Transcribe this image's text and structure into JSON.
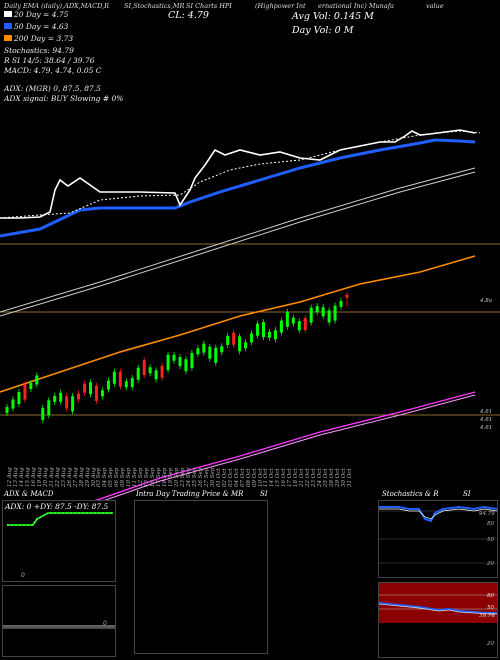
{
  "header": {
    "left_line": "Daily EMA (daily),ADX,MACD,R",
    "mid_line": "SI,Stochastics,MR",
    "mid2_line": "SI Charts HPI",
    "right_line_a": "(Highpower Int",
    "right_line_b": "ernational Inc) Munafa",
    "right_line_c": "value",
    "cl": "CL: 4.79",
    "avg_vol": "Avg Vol: 0.145 M",
    "day_vol": "Day Vol: 0   M"
  },
  "legend": {
    "ema20": "20 Day = 4.75",
    "ema50": "50 Day = 4.63",
    "ema200": "200 Day = 3.73",
    "stoch": "Stochastics: 94.79",
    "rsi": "R                SI 14/5: 38.64 / 39.76",
    "macd": "MACD: 4.79, 4.74, 0.05 C",
    "adx": "ADX:                              (MGR) 0, 87.5, 87.5",
    "adx_signal": "ADX  signal:                                    BUY Slowing # 0%"
  },
  "price_labels": {
    "p1": "4.8a",
    "p2": "4.61",
    "p3": "4.61",
    "p4": "4.61"
  },
  "dates": [
    "12 Aug",
    "13 Aug",
    "14 Aug",
    "15 Aug",
    "16 Aug",
    "19 Aug",
    "20 Aug",
    "21 Aug",
    "22 Aug",
    "23 Aug",
    "26 Aug",
    "27 Aug",
    "28 Aug",
    "29 Aug",
    "30 Aug",
    "03 Sep",
    "04 Sep",
    "05 Sep",
    "06 Sep",
    "09 Sep",
    "10 Sep",
    "11 Sep",
    "12 Sep",
    "13 Sep",
    "16 Sep",
    "17 Sep",
    "18 Sep",
    "19 Sep",
    "20 Sep",
    "23 Sep",
    "24 Sep",
    "25 Sep",
    "26 Sep",
    "27 Sep",
    "30 Sep",
    "01 Oct",
    "02 Oct",
    "03 Oct",
    "04 Oct",
    "07 Oct",
    "08 Oct",
    "09 Oct",
    "10 Oct",
    "11 Oct",
    "14 Oct",
    "15 Oct",
    "16 Oct",
    "17 Oct",
    "18 Oct",
    "21 Oct",
    "22 Oct",
    "23 Oct",
    "24 Oct",
    "25 Oct",
    "28 Oct",
    "29 Oct",
    "30 Oct",
    "31 Oct"
  ],
  "panels": {
    "adx_title": "ADX  & MACD",
    "adx_readout": "ADX: 0   +DY: 87.5  -DY: 87.5",
    "intra_title": "Intra  Day Trading Price  & MR",
    "intra_title_b": "SI",
    "stoch_title": "Stochastics & R",
    "stoch_title_b": "SI",
    "stoch_labels": [
      "94.79",
      "80",
      "50",
      "20"
    ],
    "rsi_labels": [
      "80",
      "50",
      "39.76",
      "20"
    ],
    "macd_label": "0"
  },
  "colors": {
    "ema_white": "#ffffff",
    "ema_blue": "#1f5eff",
    "ema_orange": "#ff8c00",
    "ema_magenta": "#ff33ff",
    "bull": "#00ff00",
    "bear": "#ff2020",
    "hline": "#8a6a2a",
    "rsi_bg": "#8b0000"
  }
}
